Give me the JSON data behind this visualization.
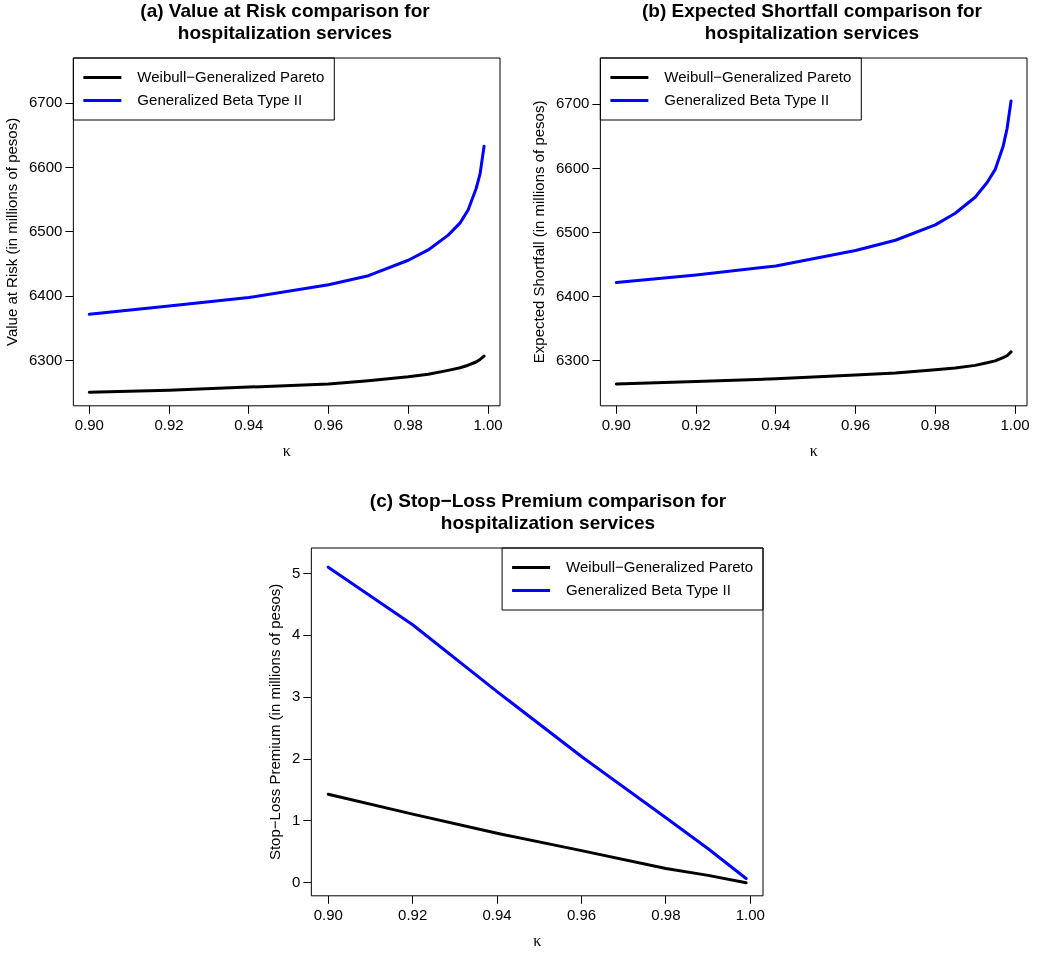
{
  "chart_data": [
    {
      "type": "line",
      "title": "(a) Value at Risk comparison for hospitalization services",
      "xlabel": "κ",
      "ylabel": "Value at Risk (in millions of pesos)",
      "x": [
        0.9,
        0.92,
        0.94,
        0.96,
        0.97,
        0.98,
        0.985,
        0.99,
        0.993,
        0.995,
        0.997,
        0.998,
        0.999
      ],
      "xlim": [
        0.896,
        1.003
      ],
      "ylim": [
        6230,
        6770
      ],
      "xticks": [
        {
          "value": 0.9,
          "label": "0.90"
        },
        {
          "value": 0.92,
          "label": "0.92"
        },
        {
          "value": 0.94,
          "label": "0.94"
        },
        {
          "value": 0.96,
          "label": "0.96"
        },
        {
          "value": 0.98,
          "label": "0.98"
        },
        {
          "value": 1,
          "label": "1.00"
        }
      ],
      "yticks": [
        6300,
        6400,
        6500,
        6600,
        6700
      ],
      "legend": "top left",
      "marker": "none",
      "series": [
        {
          "name": "Weibull−Generalized Pareto",
          "color": "#000000",
          "values": [
            6251,
            6254,
            6259,
            6264,
            6269,
            6275,
            6279,
            6285,
            6289,
            6293,
            6298,
            6302,
            6307
          ]
        },
        {
          "name": "Generalized Beta Type II",
          "color": "#0000ff",
          "values": [
            6372,
            6385,
            6398,
            6418,
            6432,
            6456,
            6472,
            6495,
            6514,
            6534,
            6567,
            6590,
            6633
          ]
        }
      ]
    },
    {
      "type": "line",
      "title": "(b) Expected Shortfall comparison for hospitalization services",
      "xlabel": "κ",
      "ylabel": "Expected Shortfall (in millions of pesos)",
      "x": [
        0.9,
        0.92,
        0.94,
        0.96,
        0.97,
        0.98,
        0.985,
        0.99,
        0.993,
        0.995,
        0.997,
        0.998,
        0.999
      ],
      "xlim": [
        0.896,
        1.003
      ],
      "ylim": [
        6230,
        6772
      ],
      "xticks": [
        {
          "value": 0.9,
          "label": "0.90"
        },
        {
          "value": 0.92,
          "label": "0.92"
        },
        {
          "value": 0.94,
          "label": "0.94"
        },
        {
          "value": 0.96,
          "label": "0.96"
        },
        {
          "value": 0.98,
          "label": "0.98"
        },
        {
          "value": 1,
          "label": "1.00"
        }
      ],
      "yticks": [
        6300,
        6400,
        6500,
        6600,
        6700
      ],
      "legend": "top left",
      "marker": "none",
      "series": [
        {
          "name": "Weibull−Generalized Pareto",
          "color": "#000000",
          "values": [
            6264,
            6268,
            6272,
            6278,
            6281,
            6286,
            6289,
            6293,
            6297,
            6300,
            6305,
            6308,
            6314
          ]
        },
        {
          "name": "Generalized Beta Type II",
          "color": "#0000ff",
          "values": [
            6422,
            6434,
            6448,
            6472,
            6488,
            6512,
            6530,
            6555,
            6578,
            6598,
            6634,
            6662,
            6705
          ]
        }
      ]
    },
    {
      "type": "line",
      "title": "(c) Stop−Loss Premium comparison for hospitalization services",
      "xlabel": "κ",
      "ylabel": "Stop−Loss Premium (in millions of pesos)",
      "x": [
        0.9,
        0.92,
        0.94,
        0.96,
        0.98,
        0.99,
        0.999
      ],
      "xlim": [
        0.896,
        1.003
      ],
      "ylim": [
        -0.21,
        5.41
      ],
      "xticks": [
        {
          "value": 0.9,
          "label": "0.90"
        },
        {
          "value": 0.92,
          "label": "0.92"
        },
        {
          "value": 0.94,
          "label": "0.94"
        },
        {
          "value": 0.96,
          "label": "0.96"
        },
        {
          "value": 0.98,
          "label": "0.98"
        },
        {
          "value": 1,
          "label": "1.00"
        }
      ],
      "yticks": [
        0,
        1,
        2,
        3,
        4,
        5
      ],
      "legend": "top right",
      "marker": "none",
      "series": [
        {
          "name": "Weibull−Generalized Pareto",
          "color": "#000000",
          "values": [
            1.43,
            1.11,
            0.8,
            0.52,
            0.23,
            0.12,
            0
          ]
        },
        {
          "name": "Generalized Beta Type II",
          "color": "#0000ff",
          "values": [
            5.1,
            4.17,
            3.09,
            2.04,
            1.05,
            0.55,
            0.07
          ]
        }
      ]
    }
  ]
}
